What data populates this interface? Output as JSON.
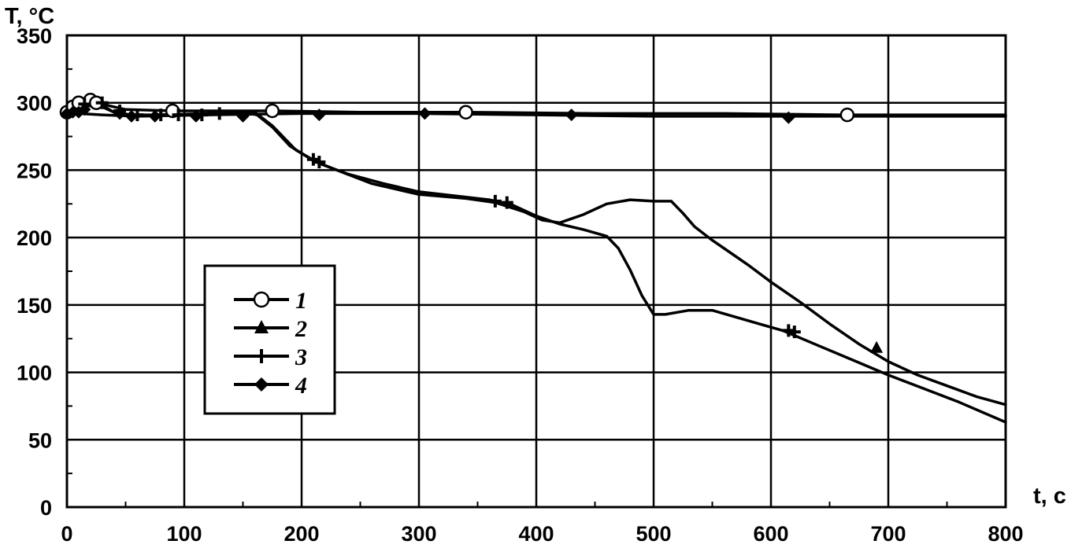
{
  "chart_data": {
    "type": "line",
    "title": "",
    "xlabel": "t, c",
    "ylabel": "T, °C",
    "xlim": [
      0,
      800
    ],
    "ylim": [
      0,
      350
    ],
    "x_ticks": [
      "0",
      "100",
      "200",
      "300",
      "400",
      "500",
      "600",
      "700",
      "800"
    ],
    "y_ticks": [
      "0",
      "50",
      "100",
      "150",
      "200",
      "250",
      "300",
      "350"
    ],
    "grid": true,
    "legend_position": "center-left",
    "series": [
      {
        "name": "1",
        "marker": "circle",
        "x": [
          0,
          5,
          10,
          20,
          30,
          50,
          90,
          140,
          175,
          250,
          340,
          450,
          560,
          660,
          800
        ],
        "y": [
          293,
          297,
          300,
          302,
          299,
          295,
          294,
          294,
          294,
          293,
          293,
          292,
          292,
          291,
          291
        ],
        "marker_x": [
          0,
          5,
          10,
          20,
          25,
          90,
          175,
          340,
          665
        ],
        "marker_y": [
          293,
          297,
          300,
          302,
          300,
          294,
          294,
          293,
          291
        ]
      },
      {
        "name": "2",
        "marker": "triangle",
        "x": [
          0,
          10,
          20,
          30,
          40,
          55,
          80,
          120,
          150,
          162,
          175,
          190,
          210,
          230,
          260,
          300,
          340,
          365,
          390,
          405,
          420,
          440,
          460,
          480,
          500,
          515,
          525,
          535,
          550,
          565,
          580,
          600,
          625,
          650,
          675,
          700,
          725,
          750,
          775,
          800
        ],
        "y": [
          293,
          298,
          301,
          298,
          293,
          291,
          291,
          292,
          293,
          291,
          282,
          268,
          257,
          250,
          240,
          232,
          229,
          226,
          219,
          213,
          211,
          217,
          225,
          228,
          227,
          227,
          218,
          208,
          198,
          189,
          180,
          167,
          152,
          136,
          121,
          108,
          98,
          90,
          82,
          76
        ],
        "marker_x": [
          690
        ],
        "marker_y": [
          118
        ]
      },
      {
        "name": "3",
        "marker": "plus",
        "x": [
          0,
          10,
          20,
          30,
          40,
          60,
          90,
          130,
          160,
          175,
          195,
          215,
          240,
          270,
          300,
          330,
          360,
          380,
          400,
          420,
          440,
          460,
          470,
          480,
          490,
          500,
          510,
          530,
          550,
          570,
          590,
          610,
          640,
          670,
          700,
          730,
          760,
          800
        ],
        "y": [
          293,
          298,
          301,
          297,
          293,
          290,
          291,
          292,
          293,
          283,
          265,
          255,
          247,
          240,
          234,
          231,
          228,
          224,
          216,
          210,
          206,
          201,
          192,
          176,
          157,
          143,
          143,
          146,
          146,
          141,
          136,
          131,
          120,
          109,
          98,
          88,
          78,
          63
        ],
        "marker_x": [
          15,
          30,
          45,
          60,
          80,
          95,
          115,
          130,
          210,
          215,
          365,
          375,
          615,
          620
        ],
        "marker_y": [
          299,
          300,
          294,
          291,
          291,
          291,
          291,
          292,
          258,
          256,
          227,
          226,
          131,
          130
        ]
      },
      {
        "name": "4",
        "marker": "diamond",
        "x": [
          0,
          10,
          30,
          60,
          120,
          200,
          300,
          400,
          500,
          600,
          700,
          800
        ],
        "y": [
          292,
          292,
          291,
          290,
          291,
          292,
          292,
          291,
          290,
          290,
          290,
          290
        ],
        "marker_x": [
          0,
          5,
          10,
          15,
          45,
          55,
          75,
          110,
          150,
          215,
          305,
          430,
          615
        ],
        "marker_y": [
          292,
          293,
          293,
          295,
          292,
          290,
          290,
          290,
          290,
          291,
          292,
          291,
          289
        ]
      }
    ]
  }
}
